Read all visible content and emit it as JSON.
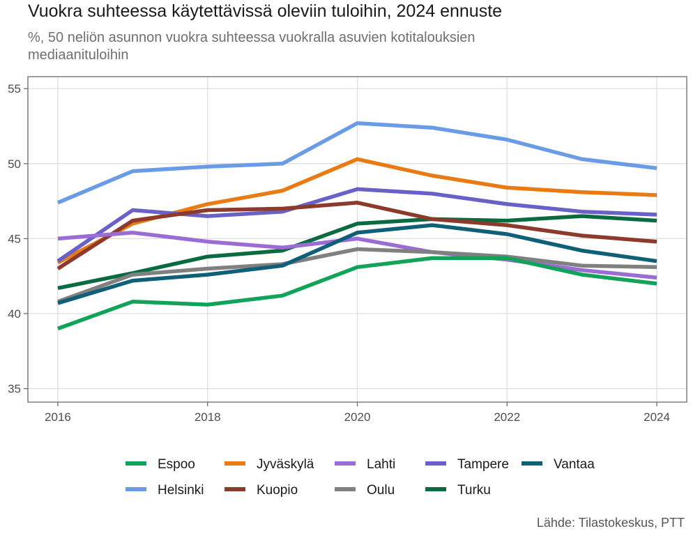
{
  "title": "Vuokra suhteessa käytettävissä oleviin tuloihin, 2024 ennuste",
  "subtitle": "%, 50 neliön asunnon vuokra suhteessa vuokralla asuvien kotitalouksien mediaanituloihin",
  "caption": "Lähde: Tilastokeskus, PTT",
  "chart_data": {
    "type": "line",
    "x": [
      2016,
      2017,
      2018,
      2019,
      2020,
      2021,
      2022,
      2023,
      2024
    ],
    "xticks": [
      2016,
      2018,
      2020,
      2022,
      2024
    ],
    "yticks": [
      35,
      40,
      45,
      50,
      55
    ],
    "xlim": [
      2015.6,
      2024.4
    ],
    "ylim": [
      34.1,
      55.8
    ],
    "grid": true,
    "legend_position": "bottom",
    "series": [
      {
        "name": "Helsinki",
        "color": "#6a9be6",
        "values": [
          47.4,
          49.5,
          49.8,
          50.0,
          52.7,
          52.4,
          51.6,
          50.3,
          49.7
        ]
      },
      {
        "name": "Jyväskylä",
        "color": "#ea7b12",
        "values": [
          43.4,
          46.0,
          47.3,
          48.2,
          50.3,
          49.2,
          48.4,
          48.1,
          47.9
        ]
      },
      {
        "name": "Tampere",
        "color": "#6a61c8",
        "values": [
          43.5,
          46.9,
          46.5,
          46.8,
          48.3,
          48.0,
          47.3,
          46.8,
          46.6
        ]
      },
      {
        "name": "Turku",
        "color": "#0a6b43",
        "values": [
          41.7,
          42.7,
          43.8,
          44.2,
          46.0,
          46.3,
          46.2,
          46.5,
          46.2
        ]
      },
      {
        "name": "Kuopio",
        "color": "#8b3a2c",
        "values": [
          43.0,
          46.2,
          46.9,
          47.0,
          47.4,
          46.3,
          45.9,
          45.2,
          44.8
        ]
      },
      {
        "name": "Lahti",
        "color": "#9b6cd4",
        "values": [
          45.0,
          45.4,
          44.8,
          44.4,
          45.0,
          44.1,
          43.6,
          42.9,
          42.4
        ]
      },
      {
        "name": "Oulu",
        "color": "#808080",
        "values": [
          40.8,
          42.6,
          43.0,
          43.3,
          44.3,
          44.1,
          43.8,
          43.2,
          43.1
        ]
      },
      {
        "name": "Vantaa",
        "color": "#0e5f77",
        "values": [
          40.7,
          42.2,
          42.6,
          43.2,
          45.4,
          45.9,
          45.3,
          44.2,
          43.5
        ]
      },
      {
        "name": "Espoo",
        "color": "#12a35a",
        "values": [
          39.0,
          40.8,
          40.6,
          41.2,
          43.1,
          43.7,
          43.7,
          42.6,
          42.0
        ]
      }
    ],
    "legend_order": [
      "Espoo",
      "Jyväskylä",
      "Lahti",
      "Tampere",
      "Vantaa",
      "Helsinki",
      "Kuopio",
      "Oulu",
      "Turku"
    ]
  }
}
